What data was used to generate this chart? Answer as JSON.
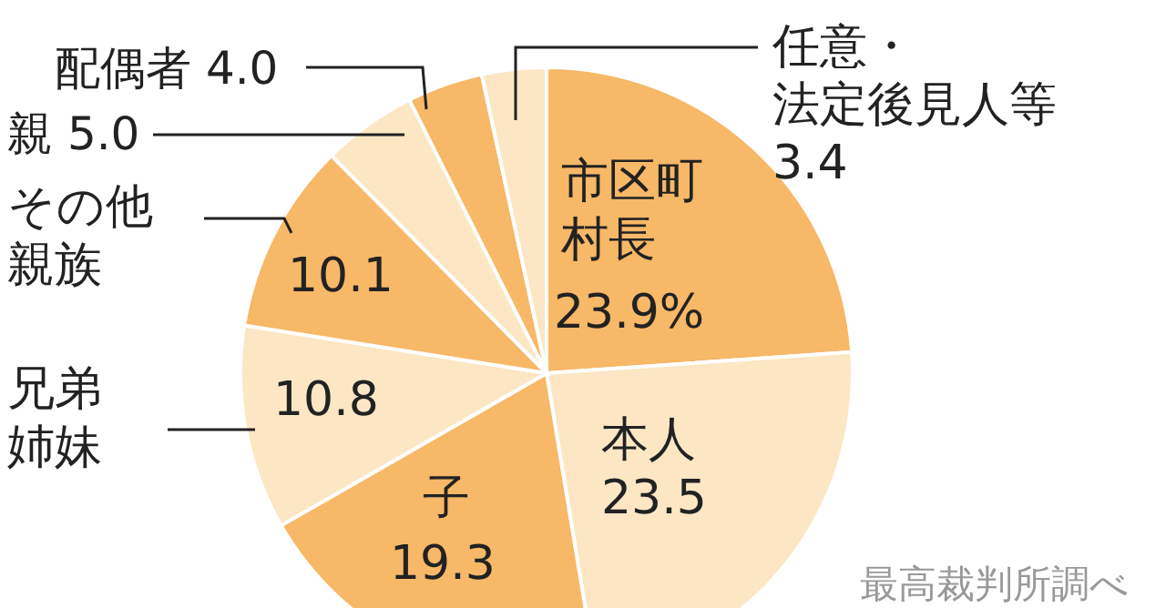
{
  "chart_data": {
    "type": "pie",
    "categories": [
      "市区町村長",
      "本人",
      "子",
      "兄弟姉妹",
      "その他親族",
      "親",
      "配偶者",
      "任意・法定後見人等"
    ],
    "values": [
      23.9,
      23.5,
      19.3,
      10.8,
      10.1,
      5.0,
      4.0,
      3.4
    ],
    "value_labels": [
      "23.9%",
      "23.5",
      "19.3",
      "10.8",
      "10.1",
      "5.0",
      "4.0",
      "3.4"
    ],
    "colors": [
      "#f7b867",
      "#fde6c4",
      "#f7b867",
      "#fde6c4",
      "#f7b867",
      "#fde6c4",
      "#f7b867",
      "#fde6c4"
    ],
    "annotations": [
      "最高裁判所調べ"
    ],
    "legend": false
  }
}
